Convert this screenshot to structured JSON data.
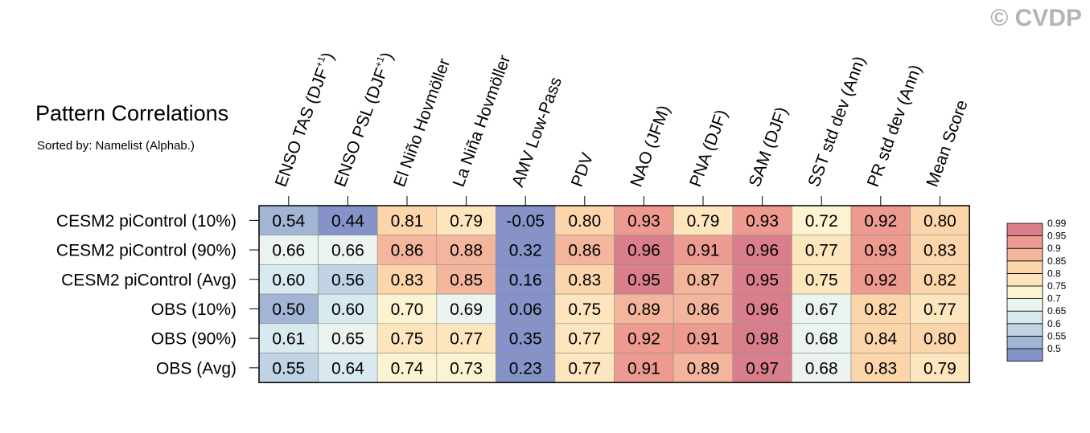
{
  "title": "Pattern Correlations",
  "subtitle": "Sorted by: Namelist (Alphab.)",
  "watermark": "© CVDP",
  "chart_data": {
    "type": "heatmap",
    "title": "Pattern Correlations",
    "subtitle": "Sorted by: Namelist (Alphab.)",
    "columns": [
      {
        "main": "ENSO TAS (DJF",
        "sup": "+1",
        "tail": ")"
      },
      {
        "main": "ENSO PSL (DJF",
        "sup": "+1",
        "tail": ")"
      },
      {
        "main": "El Niño Hovmöller"
      },
      {
        "main": "La Niña Hovmöller"
      },
      {
        "main": "AMV Low-Pass"
      },
      {
        "main": "PDV"
      },
      {
        "main": "NAO (JFM)"
      },
      {
        "main": "PNA (DJF)"
      },
      {
        "main": "SAM (DJF)"
      },
      {
        "main": "SST std dev (Ann)"
      },
      {
        "main": "PR std dev (Ann)"
      },
      {
        "main": "Mean Score"
      }
    ],
    "rows": [
      "CESM2 piControl (10%)",
      "CESM2 piControl (90%)",
      "CESM2 piControl (Avg)",
      "OBS (10%)",
      "OBS (90%)",
      "OBS (Avg)"
    ],
    "values": [
      [
        "0.54",
        "0.44",
        "0.81",
        "0.79",
        "-0.05",
        "0.80",
        "0.93",
        "0.79",
        "0.93",
        "0.72",
        "0.92",
        "0.80"
      ],
      [
        "0.66",
        "0.66",
        "0.86",
        "0.88",
        "0.32",
        "0.86",
        "0.96",
        "0.91",
        "0.96",
        "0.77",
        "0.93",
        "0.83"
      ],
      [
        "0.60",
        "0.56",
        "0.83",
        "0.85",
        "0.16",
        "0.83",
        "0.95",
        "0.87",
        "0.95",
        "0.75",
        "0.92",
        "0.82"
      ],
      [
        "0.50",
        "0.60",
        "0.70",
        "0.69",
        "0.06",
        "0.75",
        "0.89",
        "0.86",
        "0.96",
        "0.67",
        "0.82",
        "0.77"
      ],
      [
        "0.61",
        "0.65",
        "0.75",
        "0.77",
        "0.35",
        "0.77",
        "0.92",
        "0.91",
        "0.98",
        "0.68",
        "0.84",
        "0.80"
      ],
      [
        "0.55",
        "0.64",
        "0.74",
        "0.73",
        "0.23",
        "0.77",
        "0.91",
        "0.89",
        "0.97",
        "0.68",
        "0.83",
        "0.79"
      ]
    ],
    "colorbar": {
      "levels": [
        "0.5",
        "0.55",
        "0.6",
        "0.65",
        "0.7",
        "0.75",
        "0.8",
        "0.85",
        "0.9",
        "0.95",
        "0.99"
      ],
      "colors": [
        "#8593c8",
        "#a2b5d5",
        "#bfd3e4",
        "#d8e9ef",
        "#ecf4ef",
        "#fbf3d1",
        "#fde6bd",
        "#fcd5ab",
        "#f3b59b",
        "#ed9a90",
        "#d97f8c"
      ]
    },
    "ylabel": "",
    "xlabel": ""
  }
}
